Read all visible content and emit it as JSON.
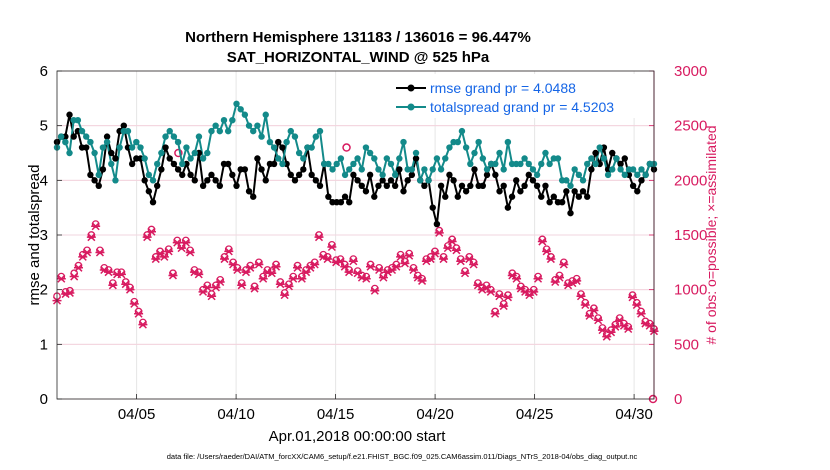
{
  "chart_data": {
    "type": "line",
    "title": "Northern Hemisphere 131183 / 136016 = 96.447%",
    "subtitle": "SAT_HORIZONTAL_WIND @ 525 hPa",
    "xlabel": "Apr.01,2018 00:00:00 start",
    "ylabel": "rmse and totalspread",
    "ylabel_right": "# of obs: o=possible; ×=assimilated",
    "footnote": "data file: /Users/raeder/DAI/ATM_forcXX/CAM6_setup/f.e21.FHIST_BGC.f09_025.CAM6assim.011/Diags_NTrS_2018-04/obs_diag_output.nc",
    "xlim": [
      1.0,
      31.0
    ],
    "ylim": [
      0,
      6
    ],
    "ylim_right": [
      0,
      3000
    ],
    "xticks": [
      5,
      10,
      15,
      20,
      25,
      30
    ],
    "xtick_labels": [
      "04/05",
      "04/10",
      "04/15",
      "04/20",
      "04/25",
      "04/30"
    ],
    "yticks": [
      0,
      1,
      2,
      3,
      4,
      5,
      6
    ],
    "yticks_right": [
      0,
      500,
      1000,
      1500,
      2000,
      2500,
      3000
    ],
    "grid": true,
    "legend_position": "top-right",
    "colors": {
      "rmse": "#000000",
      "spread": "#138a8a",
      "obs": "#d81b60",
      "legend_text": "#1565e6"
    },
    "series": [
      {
        "name": "rmse grand pr = 4.0488",
        "axis": "left",
        "marker": "circle",
        "values": [
          4.7,
          4.8,
          4.8,
          5.2,
          4.8,
          4.9,
          4.6,
          4.6,
          4.1,
          4.0,
          3.9,
          4.2,
          4.8,
          4.5,
          4.4,
          4.9,
          5.0,
          4.6,
          4.3,
          4.4,
          4.4,
          4.0,
          3.8,
          3.6,
          3.9,
          4.2,
          4.6,
          4.4,
          4.3,
          4.2,
          4.1,
          4.3,
          4.1,
          4.0,
          4.5,
          3.9,
          4.0,
          4.1,
          4.0,
          3.9,
          4.3,
          4.3,
          4.1,
          3.9,
          4.2,
          4.2,
          3.8,
          3.7,
          4.4,
          4.2,
          4.0,
          4.3,
          4.3,
          4.7,
          4.6,
          4.3,
          4.1,
          4.0,
          4.1,
          4.2,
          4.6,
          4.1,
          4.0,
          3.9,
          4.3,
          3.7,
          3.6,
          3.6,
          3.6,
          3.7,
          3.6,
          4.1,
          4.0,
          3.9,
          3.8,
          4.1,
          3.7,
          3.9,
          4.0,
          3.9,
          4.0,
          3.9,
          4.2,
          3.8,
          4.0,
          4.1,
          4.4,
          4.0,
          3.9,
          4.0,
          3.5,
          3.2,
          3.9,
          3.7,
          4.1,
          4.0,
          3.7,
          3.9,
          3.8,
          3.9,
          4.2,
          3.9,
          3.9,
          4.1,
          4.3,
          4.1,
          3.8,
          3.9,
          3.5,
          3.7,
          4.0,
          3.8,
          3.9,
          4.1,
          4.0,
          3.9,
          3.7,
          3.9,
          3.6,
          3.7,
          3.6,
          3.6,
          3.8,
          3.4,
          3.8,
          3.7,
          3.8,
          3.7,
          4.2,
          4.5,
          4.3,
          4.6,
          4.2,
          4.5,
          4.4,
          4.3,
          4.4,
          4.1,
          3.9,
          3.8,
          4.0,
          4.1,
          4.3,
          4.2
        ]
      },
      {
        "name": "totalspread grand pr = 4.5203",
        "axis": "left",
        "marker": "circle",
        "values": [
          4.6,
          4.8,
          4.7,
          4.5,
          5.1,
          5.1,
          4.9,
          4.8,
          4.7,
          4.5,
          4.1,
          4.6,
          4.7,
          4.3,
          4.0,
          4.6,
          4.9,
          4.9,
          4.6,
          4.7,
          4.6,
          4.4,
          4.1,
          4.0,
          4.3,
          4.5,
          4.8,
          4.9,
          4.8,
          4.7,
          4.3,
          4.6,
          4.4,
          4.5,
          4.8,
          4.4,
          4.5,
          4.9,
          5.0,
          4.9,
          5.1,
          4.9,
          5.1,
          5.4,
          5.3,
          5.2,
          5.0,
          4.9,
          5.0,
          4.8,
          5.2,
          4.7,
          4.6,
          4.4,
          4.3,
          4.7,
          4.9,
          4.8,
          4.5,
          4.4,
          4.6,
          4.6,
          4.8,
          4.9,
          4.3,
          4.3,
          4.2,
          4.3,
          4.4,
          4.1,
          4.2,
          4.3,
          4.4,
          4.2,
          4.6,
          4.5,
          4.4,
          4.2,
          4.1,
          4.4,
          4.3,
          4.1,
          4.4,
          4.7,
          4.2,
          4.2,
          4.5,
          4.0,
          4.2,
          4.0,
          4.2,
          4.4,
          4.2,
          4.4,
          4.6,
          4.7,
          4.7,
          4.9,
          4.6,
          4.3,
          4.5,
          4.7,
          4.4,
          4.2,
          4.3,
          4.3,
          4.5,
          4.2,
          4.7,
          4.3,
          4.3,
          4.3,
          4.4,
          4.3,
          4.2,
          4.1,
          4.3,
          4.5,
          4.3,
          4.4,
          4.4,
          4.0,
          4.0,
          3.9,
          4.2,
          4.1,
          4.0,
          4.3,
          4.4,
          4.3,
          4.6,
          4.4,
          4.1,
          4.2,
          4.4,
          4.2,
          4.1,
          4.2,
          4.2,
          4.1,
          4.2,
          4.1,
          4.3,
          4.3
        ]
      },
      {
        "name": "# of obs possible",
        "axis": "right",
        "marker": "o",
        "values": [
          940,
          1120,
          980,
          990,
          1150,
          1220,
          1320,
          1360,
          1500,
          1600,
          1360,
          1200,
          1180,
          1060,
          1160,
          1160,
          1070,
          1020,
          890,
          800,
          700,
          1500,
          1550,
          1300,
          1350,
          1320,
          1370,
          1150,
          1450,
          1400,
          1450,
          1360,
          1180,
          1160,
          1000,
          1040,
          960,
          1040,
          1090,
          1300,
          1370,
          1250,
          1200,
          1060,
          1180,
          1220,
          1030,
          1250,
          1120,
          1180,
          1170,
          1230,
          1070,
          970,
          1050,
          1120,
          1220,
          1120,
          1180,
          1220,
          1250,
          1500,
          1320,
          1300,
          1410,
          1270,
          1280,
          1230,
          1180,
          1280,
          1170,
          1130,
          1120,
          1230,
          1010,
          1200,
          1130,
          1180,
          1200,
          1230,
          1320,
          1260,
          1330,
          1200,
          1130,
          1100,
          1280,
          1300,
          1350,
          1540,
          1300,
          1400,
          1460,
          1380,
          1280,
          1170,
          1300,
          1250,
          1060,
          1020,
          1040,
          1000,
          800,
          960,
          870,
          950,
          1150,
          1120,
          1030,
          1000,
          970,
          1000,
          1120,
          1460,
          1370,
          1300,
          1090,
          1130,
          1250,
          1060,
          1080,
          1100,
          960,
          880,
          780,
          830,
          740,
          650,
          590,
          630,
          680,
          740,
          690,
          660,
          950,
          880,
          800,
          710,
          690,
          640
        ]
      },
      {
        "name": "# of obs assimilated",
        "axis": "right",
        "marker": "x",
        "values": [
          900,
          1100,
          960,
          970,
          1120,
          1200,
          1300,
          1340,
          1480,
          1580,
          1340,
          1180,
          1160,
          1040,
          1140,
          1140,
          1050,
          1000,
          870,
          780,
          680,
          1480,
          1530,
          1280,
          1330,
          1300,
          1350,
          1130,
          1430,
          1380,
          1430,
          1340,
          1160,
          1140,
          980,
          1020,
          940,
          1020,
          1070,
          1280,
          1350,
          1230,
          1180,
          1040,
          1160,
          1200,
          1010,
          1230,
          1100,
          1160,
          1150,
          1210,
          1050,
          950,
          1030,
          1100,
          1200,
          1100,
          1160,
          1200,
          1230,
          1480,
          1300,
          1280,
          1390,
          1250,
          1260,
          1210,
          1160,
          1260,
          1150,
          1110,
          1100,
          1210,
          990,
          1180,
          1110,
          1160,
          1180,
          1210,
          1300,
          1240,
          1310,
          1180,
          1110,
          1080,
          1260,
          1280,
          1330,
          1520,
          1280,
          1380,
          1440,
          1360,
          1260,
          1150,
          1280,
          1230,
          1040,
          1000,
          1020,
          980,
          780,
          940,
          850,
          930,
          1130,
          1100,
          1010,
          980,
          950,
          980,
          1100,
          1440,
          1350,
          1280,
          1070,
          1110,
          1230,
          1040,
          1060,
          1080,
          940,
          860,
          760,
          810,
          720,
          630,
          570,
          610,
          660,
          720,
          670,
          640,
          930,
          860,
          780,
          690,
          670,
          620
        ]
      }
    ],
    "extra_points": [
      {
        "x": 7.1,
        "y": 2250,
        "axis": "right",
        "marker": "o"
      },
      {
        "x": 15.55,
        "y": 2300,
        "axis": "right",
        "marker": "o"
      },
      {
        "x": 30.95,
        "y": 0,
        "axis": "right",
        "marker": "o"
      }
    ]
  }
}
